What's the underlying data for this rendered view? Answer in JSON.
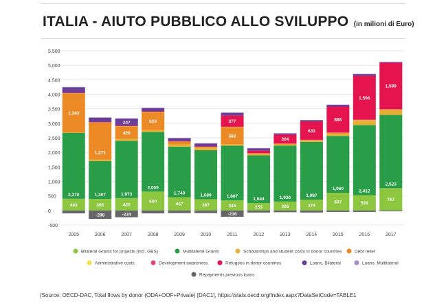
{
  "header": {
    "title": "ITALIA - AIUTO PUBBLICO ALLO SVILUPPO",
    "subtitle": "(in milioni di Euro)"
  },
  "source": "(Source: OECD-DAC, Total flows by donor (ODA+OOF+Private) [DAC1], https://stats.oecd.org/Index.aspx?DataSetCode=TABLE1",
  "chart_data": {
    "type": "bar",
    "stacked": true,
    "title": "ITALIA - AIUTO PUBBLICO ALLO SVILUPPO",
    "subtitle": "(in milioni di Euro)",
    "ylim": [
      -500,
      5500
    ],
    "yticks": [
      -500,
      0,
      500,
      1000,
      1500,
      2000,
      2500,
      3000,
      3500,
      4000,
      4500,
      5000,
      5500
    ],
    "ytick_labels": [
      "-500",
      "0",
      "500",
      "1,000",
      "1,500",
      "2,000",
      "2,500",
      "3,000",
      "3,500",
      "4,000",
      "4,500",
      "5,000",
      "5,500"
    ],
    "grid": true,
    "legend_position": "bottom",
    "categories": [
      "2005",
      "2006",
      "2007",
      "2008",
      "2009",
      "2010",
      "2011",
      "2012",
      "2013",
      "2014",
      "2015",
      "2016",
      "2017"
    ],
    "series": [
      {
        "name": "Bilateral Grants for projects (incl. GBS)",
        "color": "#8dc63f",
        "values": [
          403,
          395,
          425,
          650,
          457,
          387,
          346,
          253,
          306,
          374,
          607,
          526,
          767
        ],
        "labels": [
          "403",
          "395",
          "425",
          "650",
          "457",
          "387",
          "346",
          "253",
          "306",
          "374",
          "607",
          "526",
          "767"
        ]
      },
      {
        "name": "Multilateral Grants",
        "color": "#2a9d48",
        "values": [
          2270,
          1307,
          1973,
          2055,
          1740,
          1689,
          1887,
          1644,
          1930,
          1987,
          1960,
          2412,
          2523
        ],
        "labels": [
          "2,270",
          "1,307",
          "1,973",
          "2,055",
          "1,740",
          "1,689",
          "1,887",
          "1,644",
          "1,930",
          "1,987",
          "1,960",
          "2,412",
          "2,523"
        ]
      },
      {
        "name": "Scholarships and student costs in donor countries",
        "color": "#e5b034",
        "values": [
          15,
          50,
          70,
          60,
          80,
          70,
          50,
          40,
          40,
          40,
          80,
          150,
          170
        ],
        "labels": [
          "",
          "",
          "",
          "",
          "",
          "",
          "",
          "",
          "",
          "",
          "",
          "",
          ""
        ]
      },
      {
        "name": "Debt relief",
        "color": "#ec8a25",
        "values": [
          1343,
          1271,
          429,
          624,
          90,
          40,
          583,
          20,
          10,
          10,
          20,
          20,
          10
        ],
        "labels": [
          "1,343",
          "1,271",
          "429",
          "624",
          "",
          "",
          "583",
          "",
          "",
          "",
          "",
          "",
          ""
        ]
      },
      {
        "name": "Administrative costs",
        "color": "#f2e14a",
        "values": [
          20,
          20,
          20,
          20,
          20,
          20,
          20,
          20,
          20,
          20,
          20,
          20,
          20
        ],
        "labels": [
          "",
          "",
          "",
          "",
          "",
          "",
          "",
          "",
          "",
          "",
          "",
          "",
          ""
        ]
      },
      {
        "name": "Development awareness",
        "color": "#e0466c",
        "values": [
          2,
          2,
          2,
          2,
          2,
          2,
          2,
          2,
          2,
          2,
          2,
          2,
          2
        ],
        "labels": [
          "",
          "",
          "",
          "",
          "",
          "",
          "",
          "",
          "",
          "",
          "",
          "",
          ""
        ]
      },
      {
        "name": "Refugees in donor countries",
        "color": "#e5144f",
        "values": [
          0,
          0,
          0,
          0,
          0,
          0,
          377,
          80,
          304,
          633,
          886,
          1506,
          1599
        ],
        "labels": [
          "",
          "",
          "",
          "",
          "",
          "",
          "377",
          "",
          "304",
          "633",
          "886",
          "1,506",
          "1,599"
        ]
      },
      {
        "name": "Loans, Bilateral",
        "color": "#6a3d97",
        "values": [
          190,
          150,
          247,
          120,
          100,
          100,
          100,
          80,
          40,
          40,
          60,
          60,
          20
        ],
        "labels": [
          "",
          "",
          "247",
          "",
          "",
          "",
          "",
          "",
          "",
          "",
          "",
          "",
          ""
        ]
      },
      {
        "name": "Loans, Multilateral",
        "color": "#a98bc9",
        "values": [
          10,
          10,
          10,
          10,
          10,
          10,
          10,
          10,
          10,
          10,
          10,
          10,
          10
        ],
        "labels": [
          "",
          "",
          "",
          "",
          "",
          "",
          "",
          "",
          "",
          "",
          "",
          "",
          ""
        ]
      },
      {
        "name": "Repayments previous loans",
        "color": "#666666",
        "values": [
          -100,
          -288,
          -234,
          -100,
          -90,
          -90,
          -216,
          -70,
          -60,
          -70,
          -50,
          -50,
          -30
        ],
        "labels": [
          "",
          "-288",
          "-234",
          "",
          "",
          "",
          "-216",
          "",
          "",
          "",
          "",
          "",
          ""
        ]
      }
    ]
  }
}
